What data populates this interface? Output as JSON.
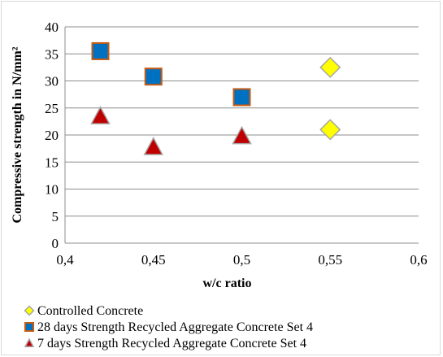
{
  "chart_data": {
    "type": "scatter",
    "xlabel": "w/c ratio",
    "ylabel": "Compressive strength in N/mm²",
    "xlim": [
      0.4,
      0.6
    ],
    "ylim": [
      0,
      40
    ],
    "x_ticks": [
      "0,4",
      "0,45",
      "0,5",
      "0,55",
      "0,6"
    ],
    "x_tick_values": [
      0.4,
      0.45,
      0.5,
      0.55,
      0.6
    ],
    "y_ticks": [
      "0",
      "5",
      "10",
      "15",
      "20",
      "25",
      "30",
      "35",
      "40"
    ],
    "y_tick_values": [
      0,
      5,
      10,
      15,
      20,
      25,
      30,
      35,
      40
    ],
    "grid": "horizontal",
    "legend_position": "bottom",
    "series": [
      {
        "name": "Controlled Concrete",
        "marker": "diamond",
        "color": "#FFFF00",
        "stroke": "#A6A6A6",
        "x": [
          0.55,
          0.55
        ],
        "y": [
          32.5,
          21
        ]
      },
      {
        "name": "28 days Strength Recycled Aggregate Concrete Set 4",
        "marker": "square",
        "color": "#0070C0",
        "stroke": "#C55A11",
        "x": [
          0.42,
          0.45,
          0.5
        ],
        "y": [
          35.5,
          30.8,
          27
        ]
      },
      {
        "name": "7 days Strength Recycled Aggregate Concrete Set 4",
        "marker": "triangle",
        "color": "#C00000",
        "stroke": "#A6A6A6",
        "x": [
          0.42,
          0.45,
          0.5
        ],
        "y": [
          23.5,
          17.8,
          19.8
        ]
      }
    ]
  }
}
